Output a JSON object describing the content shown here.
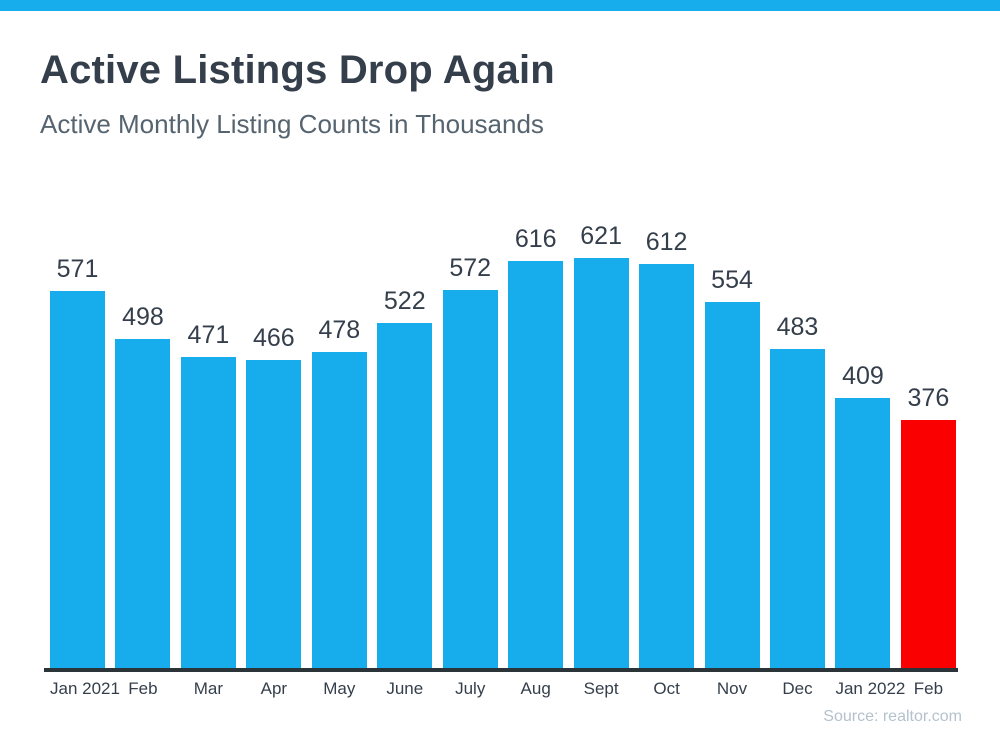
{
  "accent_color": "#17aceb",
  "header": {
    "title": "Active Listings Drop Again",
    "subtitle": "Active Monthly Listing Counts in Thousands"
  },
  "chart_data": {
    "type": "bar",
    "title": "Active Listings Drop Again",
    "subtitle": "Active Monthly Listing Counts in Thousands",
    "categories": [
      "Jan 2021",
      "Feb",
      "Mar",
      "Apr",
      "May",
      "June",
      "July",
      "Aug",
      "Sept",
      "Oct",
      "Nov",
      "Dec",
      "Jan 2022",
      "Feb"
    ],
    "values": [
      571,
      498,
      471,
      466,
      478,
      522,
      572,
      616,
      621,
      612,
      554,
      483,
      409,
      376
    ],
    "unit": "thousands",
    "ylim": [
      0,
      621
    ],
    "bar_color": "#17aceb",
    "highlight_color": "#fa0000",
    "highlight_index": 13,
    "value_labels": true,
    "grid": false,
    "legend": false,
    "axis_line_color": "#2b3439"
  },
  "footer": {
    "source": "Source: realtor.com"
  }
}
